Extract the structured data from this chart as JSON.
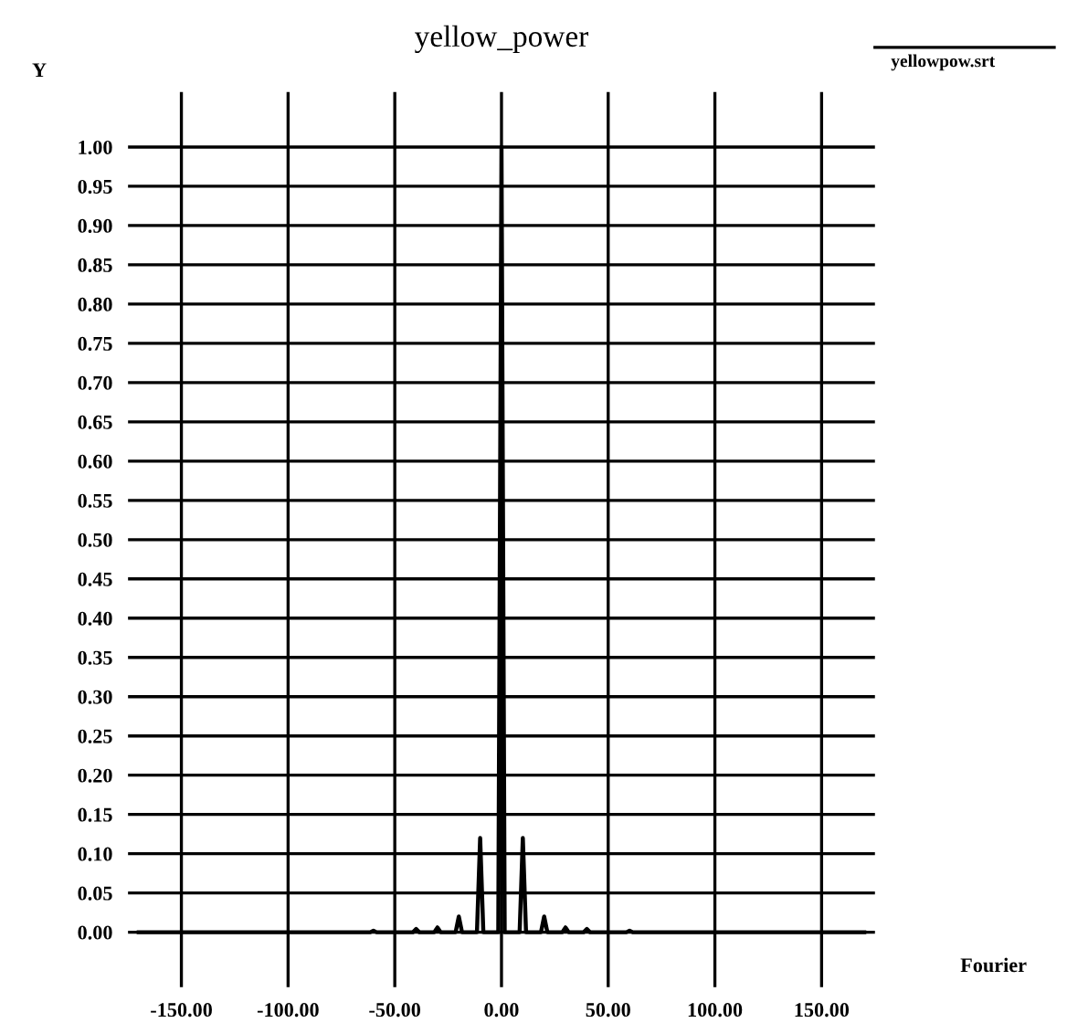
{
  "chart_data": {
    "type": "line",
    "title": "yellow_power",
    "xlabel": "Fourier",
    "ylabel": "Y",
    "xlim": [
      -175,
      175
    ],
    "ylim": [
      -0.07,
      1.07
    ],
    "xticks": [
      {
        "value": -150,
        "label": "-150.00"
      },
      {
        "value": -100,
        "label": "-100.00"
      },
      {
        "value": -50,
        "label": "-50.00"
      },
      {
        "value": 0,
        "label": "0.00"
      },
      {
        "value": 50,
        "label": "50.00"
      },
      {
        "value": 100,
        "label": "100.00"
      },
      {
        "value": 150,
        "label": "150.00"
      }
    ],
    "yticks": [
      {
        "value": 0,
        "label": "0.00"
      },
      {
        "value": 0.05,
        "label": "0.05"
      },
      {
        "value": 0.1,
        "label": "0.10"
      },
      {
        "value": 0.15,
        "label": "0.15"
      },
      {
        "value": 0.2,
        "label": "0.20"
      },
      {
        "value": 0.25,
        "label": "0.25"
      },
      {
        "value": 0.3,
        "label": "0.30"
      },
      {
        "value": 0.35,
        "label": "0.35"
      },
      {
        "value": 0.4,
        "label": "0.40"
      },
      {
        "value": 0.45,
        "label": "0.45"
      },
      {
        "value": 0.5,
        "label": "0.50"
      },
      {
        "value": 0.55,
        "label": "0.55"
      },
      {
        "value": 0.6,
        "label": "0.60"
      },
      {
        "value": 0.65,
        "label": "0.65"
      },
      {
        "value": 0.7,
        "label": "0.70"
      },
      {
        "value": 0.75,
        "label": "0.75"
      },
      {
        "value": 0.8,
        "label": "0.80"
      },
      {
        "value": 0.85,
        "label": "0.85"
      },
      {
        "value": 0.9,
        "label": "0.90"
      },
      {
        "value": 0.95,
        "label": "0.95"
      },
      {
        "value": 1.0,
        "label": "1.00"
      }
    ],
    "grid": true,
    "legend": "top right",
    "marker": "none",
    "line_style": "solid",
    "series": [
      {
        "name": "yellowpow.srt",
        "color": "#000000",
        "x": [
          -170,
          -61.5,
          -60,
          -58.5,
          -41.5,
          -40,
          -38.5,
          -31.5,
          -30,
          -28.5,
          -21.5,
          -20,
          -18.5,
          -11.5,
          -10,
          -8.5,
          -1.5,
          0,
          1.5,
          8.5,
          10,
          11.5,
          18.5,
          20,
          21.5,
          28.5,
          30,
          31.5,
          38.5,
          40,
          41.5,
          58.5,
          60,
          61.5,
          170
        ],
        "values": [
          0,
          0,
          0.002,
          0,
          0,
          0.004,
          0,
          0,
          0.006,
          0,
          0,
          0.02,
          0,
          0,
          0.12,
          0,
          0,
          1.0,
          0,
          0,
          0.12,
          0,
          0,
          0.02,
          0,
          0,
          0.006,
          0,
          0,
          0.004,
          0,
          0,
          0.002,
          0,
          0
        ]
      }
    ]
  }
}
